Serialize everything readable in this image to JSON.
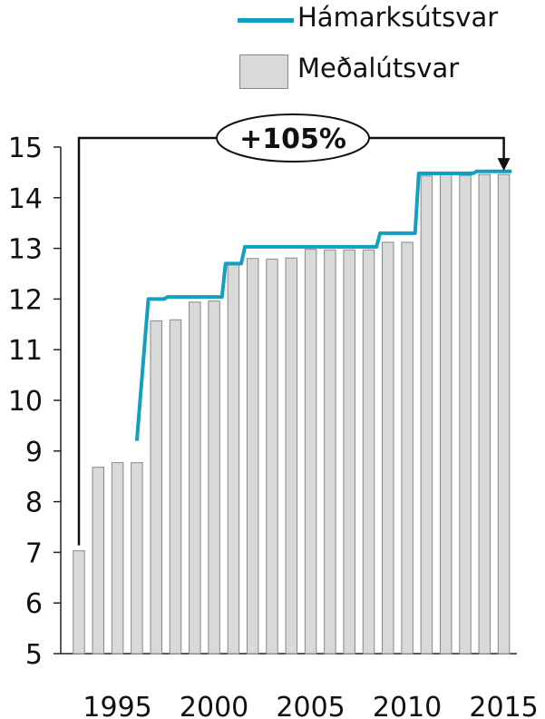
{
  "chart_data": {
    "type": "bar",
    "title": "",
    "xlabel": "",
    "ylabel": "",
    "ylim": [
      5,
      15
    ],
    "y_ticks": [
      "5",
      "6",
      "7",
      "8",
      "9",
      "10",
      "11",
      "12",
      "13",
      "14",
      "15"
    ],
    "x_ticks": [
      "1995",
      "2000",
      "2005",
      "2010",
      "2015"
    ],
    "x_tick_values": [
      1995,
      2000,
      2005,
      2010,
      2015
    ],
    "categories": [
      1993,
      1994,
      1995,
      1996,
      1997,
      1998,
      1999,
      2000,
      2001,
      2002,
      2003,
      2004,
      2005,
      2006,
      2007,
      2008,
      2009,
      2010,
      2011,
      2012,
      2013,
      2014,
      2015
    ],
    "series": [
      {
        "name": "Meðalútsvar",
        "kind": "bar",
        "color": "#d9d9d9",
        "values": [
          7.03,
          8.68,
          8.77,
          8.77,
          11.57,
          11.59,
          11.94,
          11.96,
          12.7,
          12.8,
          12.79,
          12.81,
          12.98,
          12.97,
          12.97,
          12.97,
          13.12,
          13.12,
          14.43,
          14.47,
          14.44,
          14.46,
          14.46
        ]
      },
      {
        "name": "Hámarksútsvar",
        "kind": "line",
        "color": "#129fc0",
        "x": [
          1996,
          1997,
          1998,
          1999,
          2000,
          2001,
          2002,
          2003,
          2004,
          2005,
          2006,
          2007,
          2008,
          2009,
          2010,
          2011,
          2012,
          2013,
          2014,
          2015
        ],
        "values": [
          9.2,
          12.0,
          12.04,
          12.04,
          12.04,
          12.7,
          13.03,
          13.03,
          13.03,
          13.03,
          13.03,
          13.03,
          13.03,
          13.3,
          13.3,
          14.48,
          14.48,
          14.48,
          14.52,
          14.52
        ]
      }
    ],
    "annotation": {
      "text": "+105%",
      "from_x": 1993,
      "to_x": 2015,
      "level": 15.2
    },
    "legend_position": "top-right"
  }
}
